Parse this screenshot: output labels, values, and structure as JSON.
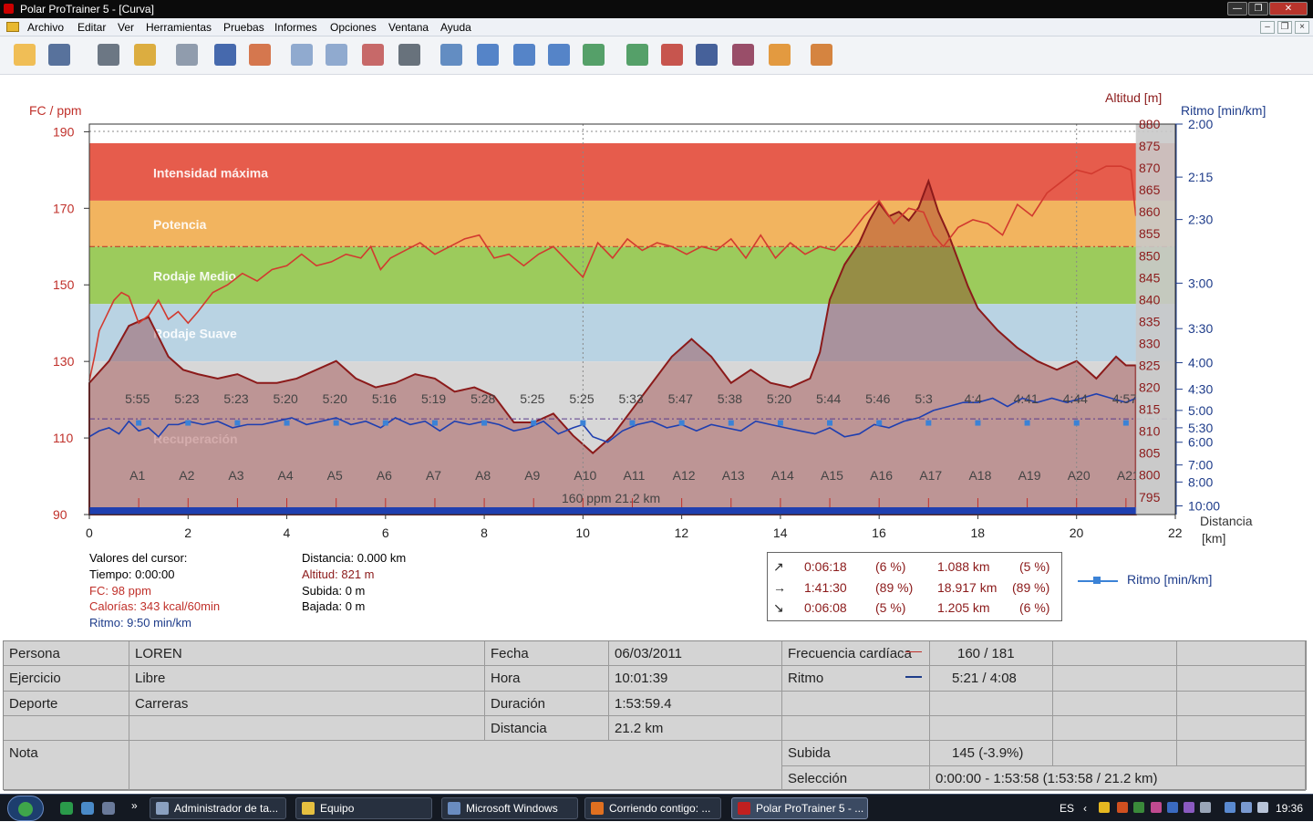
{
  "window": {
    "title": "Polar ProTrainer 5 - [Curva]",
    "min_label": "—",
    "max_label": "❐",
    "close_label": "✕"
  },
  "menu": {
    "items": [
      "Archivo",
      "Editar",
      "Ver",
      "Herramientas",
      "Pruebas",
      "Informes",
      "Opciones",
      "Ventana",
      "Ayuda"
    ]
  },
  "mdi": {
    "min_label": "–",
    "restore_label": "❐",
    "close_label": "×"
  },
  "toolbar": {
    "buttons": [
      {
        "name": "open-file",
        "icon": "folder-open-icon",
        "color": "#f0b43a"
      },
      {
        "name": "save",
        "icon": "floppy-disk-icon",
        "color": "#3d5b8c"
      },
      {
        "name": "sync",
        "icon": "watch-sync-icon",
        "color": "#556070"
      },
      {
        "name": "watch-settings",
        "icon": "watch-gear-icon",
        "color": "#d8a020"
      },
      {
        "name": "calendar",
        "icon": "calendar-icon",
        "color": "#7f8ca0"
      },
      {
        "name": "diary",
        "icon": "book-icon",
        "color": "#2850a0"
      },
      {
        "name": "person",
        "icon": "person-icon",
        "color": "#d06030"
      },
      {
        "name": "curve-view",
        "icon": "line-chart-icon",
        "color": "#7f9cc8"
      },
      {
        "name": "bar-view",
        "icon": "bar-chart-icon",
        "color": "#7f9cc8"
      },
      {
        "name": "percent-view",
        "icon": "percent-icon",
        "color": "#c05050"
      },
      {
        "name": "table-view",
        "icon": "table-icon",
        "color": "#505a66"
      },
      {
        "name": "zoom",
        "icon": "magnifier-icon",
        "color": "#4a7ab8"
      },
      {
        "name": "analysis",
        "icon": "runner-chart-icon",
        "color": "#3a70c0"
      },
      {
        "name": "route",
        "icon": "route-icon",
        "color": "#3a70c0"
      },
      {
        "name": "speed",
        "icon": "speedometer-icon",
        "color": "#3a70c0"
      },
      {
        "name": "trend",
        "icon": "trend-icon",
        "color": "#3a9050"
      },
      {
        "name": "sport-1",
        "icon": "sport-zone-1-icon",
        "color": "#3a9050"
      },
      {
        "name": "sport-2",
        "icon": "sport-zone-2-icon",
        "color": "#c03830"
      },
      {
        "name": "sport-3",
        "icon": "sport-zone-3-icon",
        "color": "#28468a"
      },
      {
        "name": "sport-4",
        "icon": "sport-zone-4-icon",
        "color": "#8a3050"
      },
      {
        "name": "sport-5",
        "icon": "sport-zone-5-icon",
        "color": "#e08a20"
      },
      {
        "name": "users",
        "icon": "users-icon",
        "color": "#d07020"
      }
    ]
  },
  "chart_data": {
    "type": "line",
    "left_axis": {
      "label": "FC / ppm",
      "ticks": [
        90,
        110,
        130,
        150,
        170,
        190
      ],
      "range": [
        90,
        192
      ],
      "color": "#c0302a"
    },
    "altitude_axis": {
      "label": "Altitud [m]",
      "ticks": [
        795,
        800,
        805,
        810,
        815,
        820,
        825,
        830,
        835,
        840,
        845,
        850,
        855,
        860,
        865,
        870,
        875,
        880
      ],
      "range": [
        791,
        880
      ],
      "color": "#8b1a1a"
    },
    "pace_axis": {
      "label": "Ritmo [min/km]",
      "tick_labels": [
        "2:00",
        "2:15",
        "2:30",
        "3:00",
        "3:30",
        "4:00",
        "4:30",
        "5:00",
        "5:30",
        "6:00",
        "7:00",
        "8:00",
        "10:00"
      ],
      "tick_values": [
        2,
        2.25,
        2.5,
        3,
        3.5,
        4,
        4.5,
        5,
        5.5,
        6,
        7,
        8,
        10
      ],
      "color": "#1e3c8a"
    },
    "x_axis": {
      "label": "Distancia\n[km]",
      "ticks": [
        0,
        2,
        4,
        6,
        8,
        10,
        12,
        14,
        16,
        18,
        20,
        22
      ],
      "range": [
        0,
        22
      ]
    },
    "zones": [
      {
        "name": "Intensidad máxima",
        "from": 172,
        "to": 187,
        "color": "#e65c4c"
      },
      {
        "name": "Potencia",
        "from": 160,
        "to": 172,
        "color": "#f2b45f"
      },
      {
        "name": "Rodaje Medio",
        "from": 145,
        "to": 160,
        "color": "#9ccb5c"
      },
      {
        "name": "Rodaje Suave",
        "from": 130,
        "to": 145,
        "color": "#b9d3e3"
      },
      {
        "name": "Recuperación",
        "from": 90,
        "to": 130,
        "color": "#d7d7d7"
      }
    ],
    "hr_limits": [
      160,
      115
    ],
    "series": [
      {
        "name": "Altitud [m]",
        "x": [
          0,
          0.4,
          0.8,
          1.2,
          1.6,
          1.9,
          2.2,
          2.6,
          3,
          3.4,
          3.8,
          4.2,
          4.6,
          5,
          5.4,
          5.8,
          6.2,
          6.6,
          7,
          7.4,
          7.8,
          8.2,
          8.6,
          9,
          9.4,
          9.8,
          10.2,
          10.6,
          11,
          11.4,
          11.8,
          12.2,
          12.6,
          13,
          13.4,
          13.8,
          14.2,
          14.6,
          14.8,
          15.0,
          15.3,
          15.6,
          15.8,
          16.0,
          16.2,
          16.4,
          16.6,
          16.8,
          17.0,
          17.2,
          17.4,
          17.6,
          17.8,
          18.0,
          18.4,
          18.8,
          19.2,
          19.6,
          20.0,
          20.4,
          20.8,
          21.0,
          21.2
        ],
        "y": [
          821,
          826,
          834,
          836,
          827,
          824,
          823,
          822,
          823,
          821,
          821,
          822,
          824,
          826,
          822,
          820,
          821,
          823,
          822,
          819,
          820,
          818,
          812,
          812,
          814,
          809,
          805,
          809,
          815,
          821,
          827,
          831,
          827,
          821,
          824,
          821,
          820,
          822,
          828,
          840,
          848,
          853,
          858,
          862,
          859,
          860,
          858,
          861,
          867,
          860,
          855,
          849,
          843,
          838,
          833,
          829,
          826,
          824,
          826,
          822,
          827,
          825,
          825
        ],
        "color": "#8b1a1a"
      },
      {
        "name": "FC",
        "x": [
          0,
          0.1,
          0.2,
          0.35,
          0.5,
          0.65,
          0.8,
          1,
          1.2,
          1.4,
          1.6,
          1.8,
          2,
          2.2,
          2.5,
          2.8,
          3.1,
          3.4,
          3.7,
          4,
          4.3,
          4.6,
          4.9,
          5.2,
          5.5,
          5.7,
          5.9,
          6.1,
          6.4,
          6.7,
          7,
          7.3,
          7.6,
          7.9,
          8.2,
          8.5,
          8.8,
          9.1,
          9.4,
          9.7,
          10,
          10.3,
          10.6,
          10.9,
          11.2,
          11.5,
          11.8,
          12.1,
          12.4,
          12.7,
          13,
          13.3,
          13.6,
          13.9,
          14.2,
          14.5,
          14.8,
          15.1,
          15.4,
          15.7,
          16,
          16.3,
          16.6,
          16.9,
          17.1,
          17.3,
          17.6,
          17.9,
          18.2,
          18.5,
          18.8,
          19.1,
          19.4,
          19.7,
          20,
          20.3,
          20.6,
          20.9,
          21.1,
          21.2
        ],
        "y": [
          125,
          131,
          138,
          142,
          146,
          148,
          147,
          140,
          142,
          146,
          141,
          143,
          140,
          143,
          148,
          150,
          153,
          151,
          154,
          155,
          158,
          155,
          156,
          158,
          157,
          160,
          154,
          157,
          159,
          161,
          158,
          160,
          162,
          163,
          157,
          158,
          155,
          158,
          160,
          156,
          152,
          161,
          157,
          162,
          159,
          161,
          160,
          158,
          160,
          159,
          162,
          157,
          163,
          157,
          161,
          158,
          160,
          159,
          163,
          168,
          172,
          166,
          170,
          169,
          163,
          160,
          165,
          167,
          166,
          163,
          171,
          168,
          174,
          177,
          180,
          179,
          181,
          181,
          180,
          168
        ],
        "color": "#d23a2f"
      },
      {
        "name": "Ritmo [min/km]",
        "x": [
          0,
          0.2,
          0.4,
          0.6,
          0.8,
          1,
          1.2,
          1.4,
          1.6,
          1.8,
          2,
          2.3,
          2.6,
          2.9,
          3.2,
          3.5,
          3.8,
          4.1,
          4.4,
          4.7,
          5,
          5.3,
          5.6,
          5.9,
          6.2,
          6.5,
          6.8,
          7.1,
          7.4,
          7.7,
          8,
          8.3,
          8.6,
          8.9,
          9.2,
          9.5,
          9.8,
          10,
          10.2,
          10.5,
          10.8,
          11.1,
          11.4,
          11.7,
          12,
          12.3,
          12.6,
          12.9,
          13.2,
          13.5,
          13.8,
          14.1,
          14.4,
          14.7,
          15,
          15.3,
          15.6,
          15.9,
          16.2,
          16.5,
          16.8,
          17.1,
          17.4,
          17.7,
          18,
          18.3,
          18.6,
          18.9,
          19.2,
          19.5,
          19.8,
          20.1,
          20.4,
          20.7,
          21,
          21.2
        ],
        "y": [
          5.8,
          5.6,
          5.5,
          5.7,
          5.3,
          5.6,
          5.5,
          5.8,
          5.4,
          5.4,
          5.3,
          5.4,
          5.3,
          5.5,
          5.4,
          5.4,
          5.3,
          5.2,
          5.4,
          5.3,
          5.2,
          5.4,
          5.3,
          5.5,
          5.2,
          5.4,
          5.3,
          5.6,
          5.3,
          5.4,
          5.3,
          5.4,
          5.6,
          5.5,
          5.3,
          5.7,
          5.5,
          5.4,
          5.8,
          6.0,
          5.6,
          5.4,
          5.3,
          5.5,
          5.4,
          5.6,
          5.4,
          5.5,
          5.6,
          5.3,
          5.4,
          5.5,
          5.6,
          5.7,
          5.5,
          5.8,
          5.7,
          5.4,
          5.5,
          5.3,
          5.2,
          5.0,
          4.9,
          4.8,
          4.8,
          4.7,
          4.9,
          4.7,
          4.8,
          4.7,
          4.8,
          4.7,
          4.6,
          4.7,
          4.8,
          4.7
        ],
        "color": "#1f3fb0"
      }
    ],
    "laps": [
      {
        "label": "A1",
        "km": 1,
        "pace": "5:55"
      },
      {
        "label": "A2",
        "km": 2,
        "pace": "5:23"
      },
      {
        "label": "A3",
        "km": 3,
        "pace": "5:23"
      },
      {
        "label": "A4",
        "km": 4,
        "pace": "5:20"
      },
      {
        "label": "A5",
        "km": 5,
        "pace": "5:20"
      },
      {
        "label": "A6",
        "km": 6,
        "pace": "5:16"
      },
      {
        "label": "A7",
        "km": 7,
        "pace": "5:19"
      },
      {
        "label": "A8",
        "km": 8,
        "pace": "5:28"
      },
      {
        "label": "A9",
        "km": 9,
        "pace": "5:25"
      },
      {
        "label": "A10",
        "km": 10,
        "pace": "5:25"
      },
      {
        "label": "A11",
        "km": 11,
        "pace": "5:33"
      },
      {
        "label": "A12",
        "km": 12,
        "pace": "5:47"
      },
      {
        "label": "A13",
        "km": 13,
        "pace": "5:38"
      },
      {
        "label": "A14",
        "km": 14,
        "pace": "5:20"
      },
      {
        "label": "A15",
        "km": 15,
        "pace": "5:44"
      },
      {
        "label": "A16",
        "km": 16,
        "pace": "5:46"
      },
      {
        "label": "A17",
        "km": 17,
        "pace": "5:3"
      },
      {
        "label": "A18",
        "km": 18,
        "pace": "4:4"
      },
      {
        "label": "A19",
        "km": 19,
        "pace": "4:41"
      },
      {
        "label": "A20",
        "km": 20,
        "pace": "4:44"
      },
      {
        "label": "A21",
        "km": 21,
        "pace": "4:57"
      }
    ],
    "overlay_text": "160 ppm 21.2 km"
  },
  "cursor": {
    "title": "Valores del cursor:",
    "tiempo": "Tiempo: 0:00:00",
    "fc": "FC: 98 ppm",
    "calorias": "Calorías: 343 kcal/60min",
    "ritmo": "Ritmo: 9:50 min/km",
    "distancia": "Distancia: 0.000 km",
    "altitud": "Altitud: 821 m",
    "subida": "Subida: 0 m",
    "bajada": "Bajada: 0 m"
  },
  "summary": {
    "rows": [
      {
        "arrow": "↗",
        "time": "0:06:18",
        "time_pct": "(6 %)",
        "dist": "1.088 km",
        "dist_pct": "(5 %)"
      },
      {
        "arrow": "→",
        "time": "1:41:30",
        "time_pct": "(89 %)",
        "dist": "18.917 km",
        "dist_pct": "(89 %)"
      },
      {
        "arrow": "↘",
        "time": "0:06:08",
        "time_pct": "(5 %)",
        "dist": "1.205 km",
        "dist_pct": "(6 %)"
      }
    ]
  },
  "legend": {
    "label": "Ritmo [min/km]"
  },
  "grid": {
    "persona_label": "Persona",
    "persona_value": "LOREN",
    "ejercicio_label": "Ejercicio",
    "ejercicio_value": "Libre",
    "deporte_label": "Deporte",
    "deporte_value": "Carreras",
    "nota_label": "Nota",
    "fecha_label": "Fecha",
    "fecha_value": "06/03/2011",
    "hora_label": "Hora",
    "hora_value": "10:01:39",
    "duracion_label": "Duración",
    "duracion_value": "1:53:59.4",
    "distancia_label": "Distancia",
    "distancia_value": "21.2 km",
    "fc_label": "Frecuencia cardíaca",
    "fc_value": "160 / 181",
    "ritmo_label": "Ritmo",
    "ritmo_value": "5:21 / 4:08",
    "subida_label": "Subida",
    "subida_value": "145 (-3.9%)",
    "seleccion_label": "Selección",
    "seleccion_value": "0:00:00 - 1:53:58 (1:53:58 / 21.2 km)"
  },
  "taskbar": {
    "tasks": [
      {
        "label": "Administrador de ta...",
        "color": "#8aa0c0"
      },
      {
        "label": "Equipo",
        "color": "#e6c040"
      },
      {
        "label": "Microsoft Windows",
        "color": "#6a8cc0"
      },
      {
        "label": "Corriendo contigo: ...",
        "color": "#e07020"
      },
      {
        "label": "Polar ProTrainer 5 - ...",
        "color": "#c02020"
      }
    ],
    "lang": "ES",
    "clock": "19:36"
  }
}
